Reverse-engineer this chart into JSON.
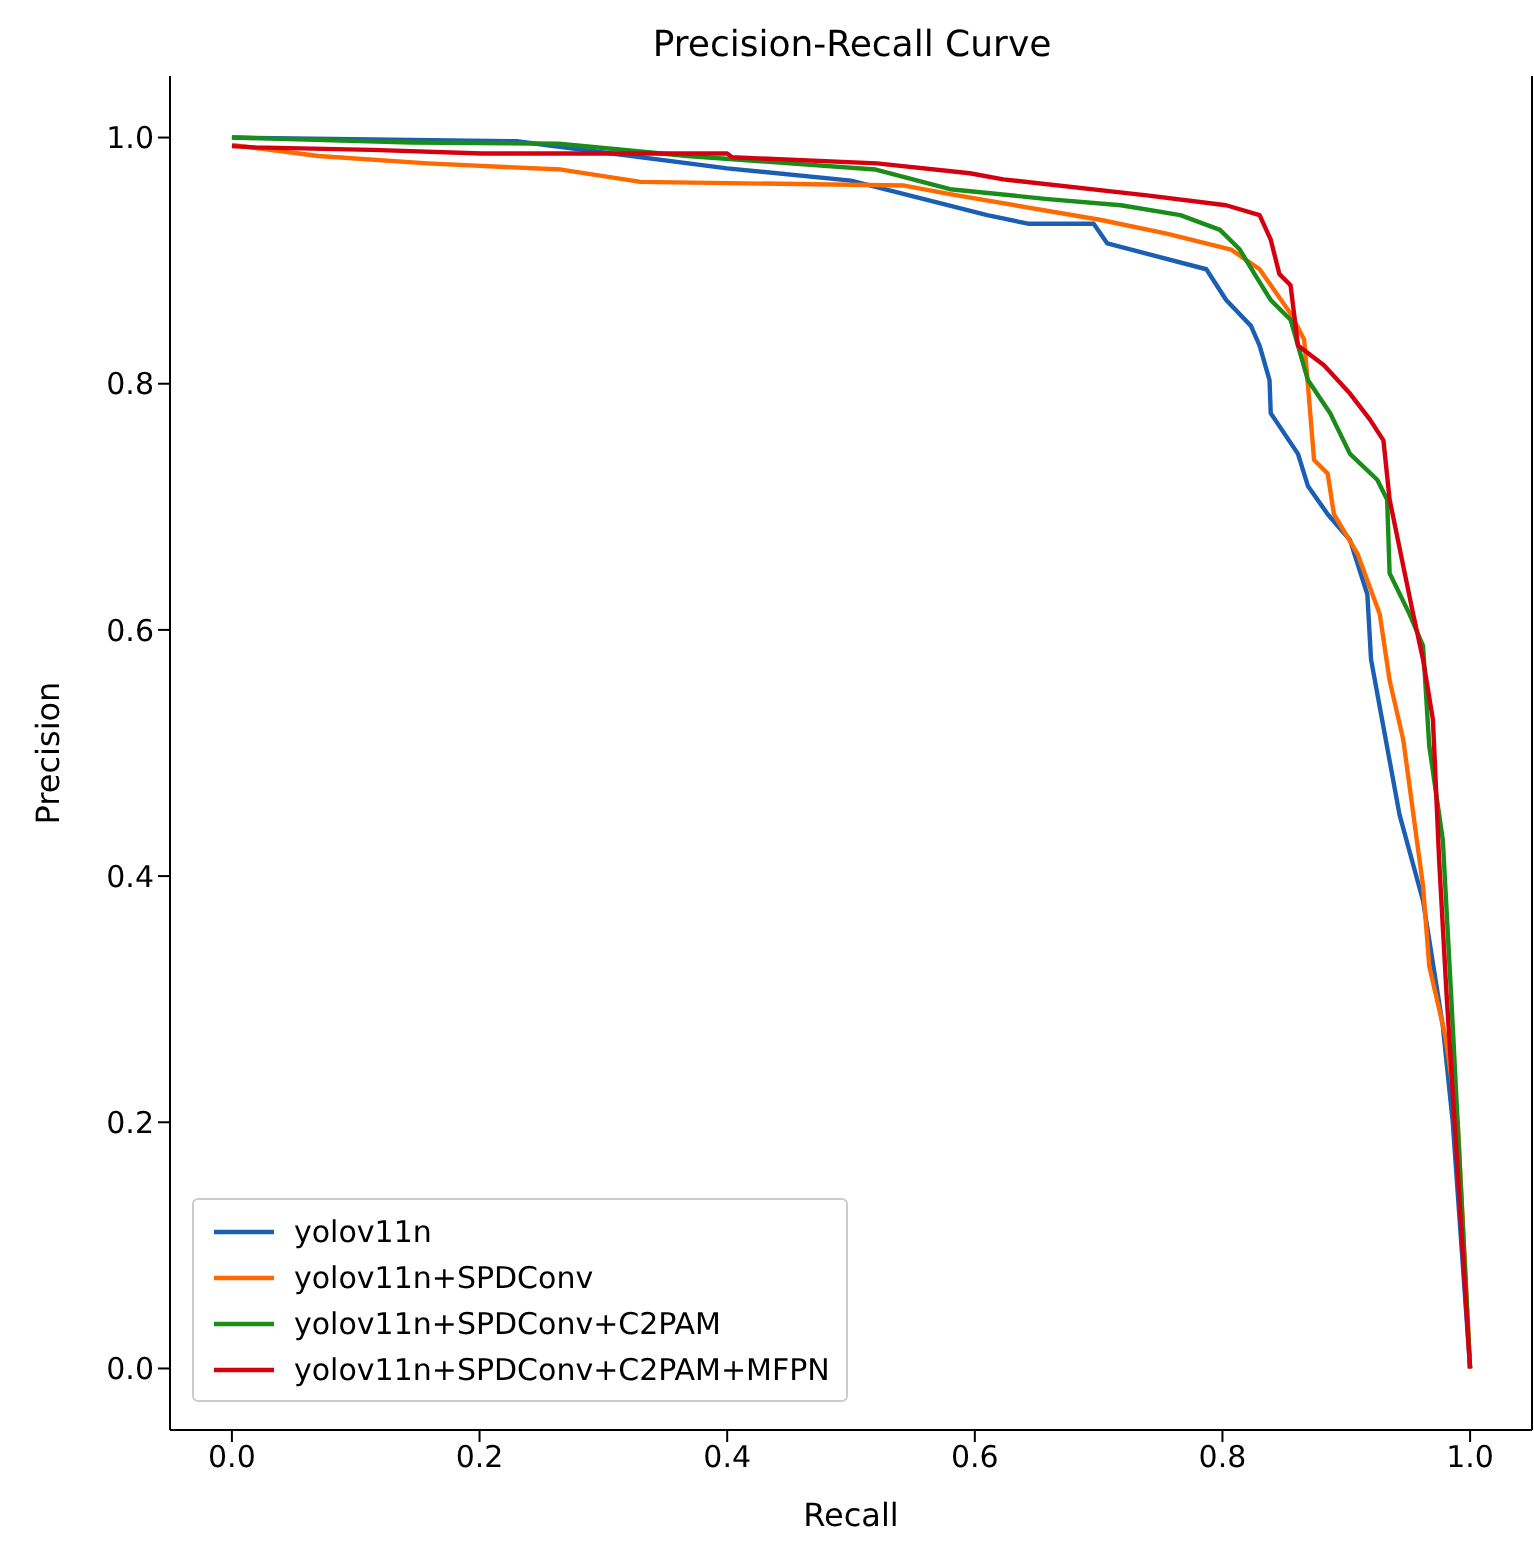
{
  "chart_data": {
    "type": "line",
    "title": "Precision-Recall Curve",
    "xlabel": "Recall",
    "ylabel": "Precision",
    "xlim": [
      -0.05,
      1.05
    ],
    "ylim": [
      -0.05,
      1.05
    ],
    "xticks": [
      {
        "value": 0,
        "label": "0.0"
      },
      {
        "value": 0.2,
        "label": "0.2"
      },
      {
        "value": 0.4,
        "label": "0.4"
      },
      {
        "value": 0.6,
        "label": "0.6"
      },
      {
        "value": 0.8,
        "label": "0.8"
      },
      {
        "value": 1,
        "label": "1.0"
      }
    ],
    "yticks": [
      {
        "value": 0,
        "label": "0.0"
      },
      {
        "value": 0.2,
        "label": "0.2"
      },
      {
        "value": 0.4,
        "label": "0.4"
      },
      {
        "value": 0.6,
        "label": "0.6"
      },
      {
        "value": 0.8,
        "label": "0.8"
      },
      {
        "value": 1,
        "label": "1.0"
      }
    ],
    "grid": false,
    "legend": "bottom left",
    "marker": "none",
    "line_style": "solid",
    "series": [
      {
        "name": "yolov11n",
        "color": "#1a5fb4",
        "x": [
          0,
          0.23,
          0.4,
          0.5,
          0.61,
          0.643,
          0.696,
          0.707,
          0.787,
          0.803,
          0.823,
          0.83,
          0.838,
          0.839,
          0.861,
          0.869,
          0.885,
          0.903,
          0.917,
          0.92,
          0.943,
          0.962,
          0.978,
          0.986,
          1.0
        ],
        "values": [
          1.0,
          0.997,
          0.975,
          0.965,
          0.937,
          0.93,
          0.93,
          0.914,
          0.893,
          0.868,
          0.847,
          0.831,
          0.803,
          0.776,
          0.743,
          0.717,
          0.694,
          0.673,
          0.629,
          0.576,
          0.45,
          0.38,
          0.278,
          0.2,
          0.0
        ]
      },
      {
        "name": "yolov11n+SPDConv",
        "color": "#ff6a00",
        "x": [
          0,
          0.07,
          0.158,
          0.266,
          0.33,
          0.543,
          0.58,
          0.702,
          0.755,
          0.807,
          0.83,
          0.855,
          0.866,
          0.874,
          0.885,
          0.89,
          0.909,
          0.927,
          0.935,
          0.946,
          0.962,
          0.967,
          0.98,
          0.99,
          1.0
        ],
        "values": [
          0.994,
          0.985,
          0.979,
          0.974,
          0.964,
          0.961,
          0.954,
          0.933,
          0.922,
          0.909,
          0.893,
          0.857,
          0.836,
          0.738,
          0.727,
          0.694,
          0.662,
          0.613,
          0.559,
          0.511,
          0.392,
          0.327,
          0.27,
          0.2,
          0.0
        ]
      },
      {
        "name": "yolov11n+SPDConv+C2PAM",
        "color": "#1a8c1a",
        "x": [
          0,
          0.145,
          0.264,
          0.368,
          0.52,
          0.58,
          0.659,
          0.718,
          0.766,
          0.798,
          0.814,
          0.826,
          0.839,
          0.855,
          0.869,
          0.887,
          0.903,
          0.925,
          0.933,
          0.935,
          0.951,
          0.962,
          0.967,
          0.978,
          0.986,
          1.0
        ],
        "values": [
          1.0,
          0.996,
          0.995,
          0.985,
          0.974,
          0.958,
          0.95,
          0.945,
          0.937,
          0.925,
          0.909,
          0.889,
          0.868,
          0.852,
          0.803,
          0.776,
          0.743,
          0.722,
          0.706,
          0.646,
          0.613,
          0.587,
          0.506,
          0.429,
          0.278,
          0.0
        ]
      },
      {
        "name": "yolov11n+SPDConv+C2PAM+MFPN",
        "color": "#d40010",
        "x": [
          0,
          0.018,
          0.113,
          0.202,
          0.4,
          0.404,
          0.521,
          0.596,
          0.623,
          0.739,
          0.803,
          0.83,
          0.839,
          0.846,
          0.855,
          0.861,
          0.882,
          0.903,
          0.919,
          0.93,
          0.935,
          0.946,
          0.954,
          0.962,
          0.97,
          0.975,
          0.981,
          1.0
        ],
        "values": [
          0.993,
          0.992,
          0.99,
          0.987,
          0.987,
          0.984,
          0.979,
          0.971,
          0.966,
          0.953,
          0.945,
          0.937,
          0.917,
          0.889,
          0.88,
          0.831,
          0.815,
          0.792,
          0.771,
          0.754,
          0.706,
          0.652,
          0.613,
          0.576,
          0.527,
          0.413,
          0.304,
          0.0
        ]
      }
    ]
  }
}
